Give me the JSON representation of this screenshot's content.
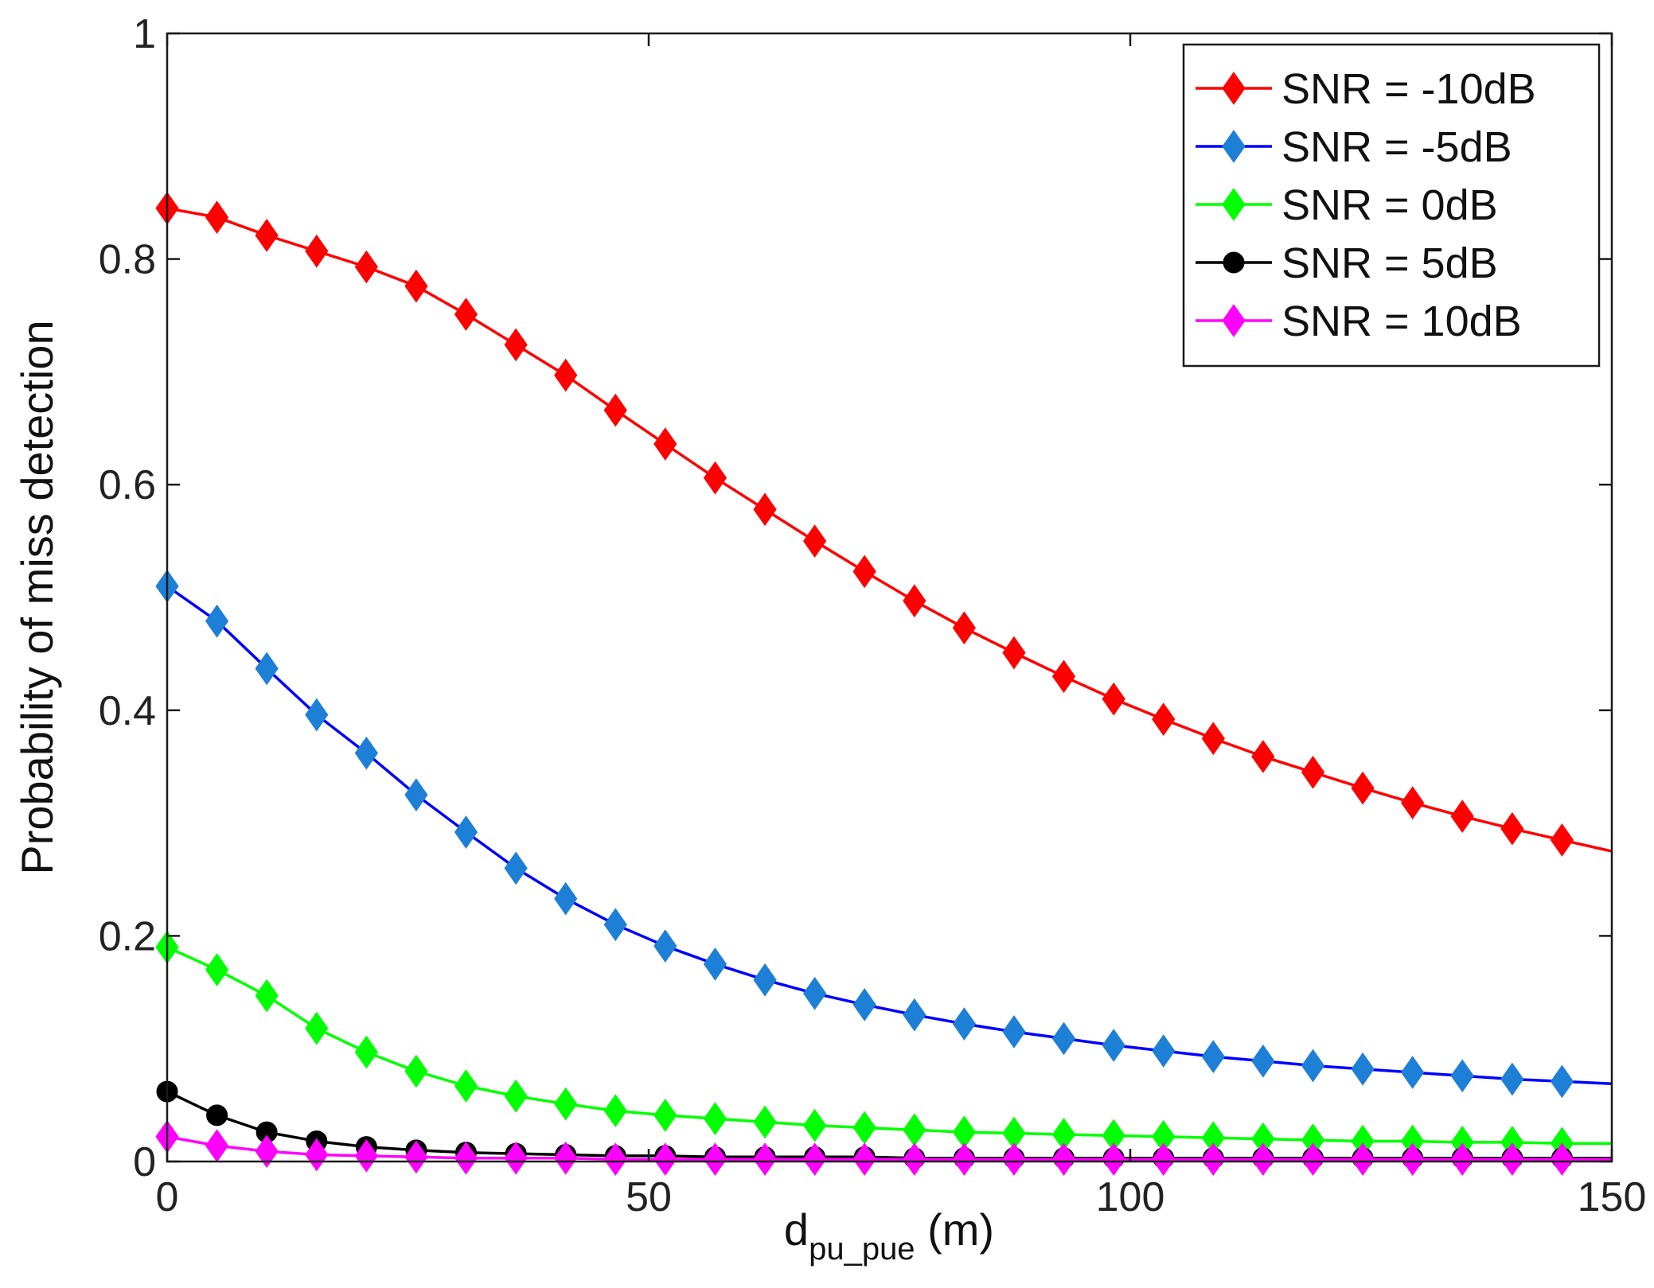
{
  "chart_data": {
    "type": "line",
    "title": "",
    "xlabel": {
      "main": "d",
      "sub": "pu_pue",
      "suffix": " (m)"
    },
    "ylabel": "Probability of miss detection",
    "xlim": [
      0,
      150
    ],
    "ylim": [
      0,
      1
    ],
    "xticks": [
      0,
      50,
      100,
      150
    ],
    "xtick_labels": [
      "0",
      "50",
      "100",
      "150"
    ],
    "yticks": [
      0,
      0.2,
      0.4,
      0.6,
      0.8,
      1
    ],
    "ytick_labels": [
      "0",
      "0.2",
      "0.4",
      "0.6",
      "0.8",
      "1"
    ],
    "grid": false,
    "legend_position": "top-right",
    "x": [
      0,
      5.17,
      10.34,
      15.52,
      20.69,
      25.86,
      31.03,
      36.21,
      41.38,
      46.55,
      51.72,
      56.9,
      62.07,
      67.24,
      72.41,
      77.59,
      82.76,
      87.93,
      93.1,
      98.28,
      103.45,
      108.62,
      113.79,
      118.97,
      124.14,
      129.31,
      134.48,
      139.66,
      144.83,
      150
    ],
    "series": [
      {
        "name": "SNR = -10dB",
        "color": "#ff0000",
        "line_color": "#ff0000",
        "marker": "diamond",
        "values": [
          0.845,
          0.837,
          0.821,
          0.807,
          0.793,
          0.776,
          0.751,
          0.724,
          0.697,
          0.666,
          0.636,
          0.606,
          0.578,
          0.55,
          0.523,
          0.497,
          0.473,
          0.451,
          0.43,
          0.41,
          0.392,
          0.375,
          0.359,
          0.345,
          0.331,
          0.318,
          0.306,
          0.295,
          0.285,
          0.275
        ]
      },
      {
        "name": "SNR = -5dB",
        "color": "#1e7fd6",
        "line_color": "#0000ff",
        "marker": "diamond",
        "values": [
          0.51,
          0.479,
          0.437,
          0.396,
          0.362,
          0.325,
          0.292,
          0.26,
          0.233,
          0.21,
          0.191,
          0.175,
          0.161,
          0.149,
          0.139,
          0.13,
          0.122,
          0.115,
          0.109,
          0.103,
          0.098,
          0.093,
          0.089,
          0.085,
          0.082,
          0.079,
          0.076,
          0.073,
          0.071,
          0.069
        ]
      },
      {
        "name": "SNR = 0dB",
        "color": "#00ff00",
        "line_color": "#00ff00",
        "marker": "diamond",
        "values": [
          0.19,
          0.17,
          0.147,
          0.118,
          0.097,
          0.08,
          0.067,
          0.058,
          0.051,
          0.045,
          0.041,
          0.038,
          0.035,
          0.032,
          0.03,
          0.028,
          0.026,
          0.025,
          0.024,
          0.023,
          0.022,
          0.021,
          0.02,
          0.019,
          0.018,
          0.018,
          0.017,
          0.017,
          0.016,
          0.016
        ]
      },
      {
        "name": "SNR = 5dB",
        "color": "#000000",
        "line_color": "#000000",
        "marker": "circle",
        "values": [
          0.062,
          0.041,
          0.026,
          0.018,
          0.013,
          0.01,
          0.008,
          0.007,
          0.006,
          0.005,
          0.005,
          0.004,
          0.004,
          0.004,
          0.004,
          0.003,
          0.003,
          0.003,
          0.003,
          0.003,
          0.003,
          0.003,
          0.003,
          0.003,
          0.003,
          0.003,
          0.003,
          0.003,
          0.003,
          0.003
        ]
      },
      {
        "name": "SNR = 10dB",
        "color": "#ff00ff",
        "line_color": "#ff00ff",
        "marker": "diamond",
        "values": [
          0.022,
          0.014,
          0.009,
          0.006,
          0.005,
          0.004,
          0.003,
          0.003,
          0.003,
          0.002,
          0.002,
          0.002,
          0.002,
          0.002,
          0.002,
          0.002,
          0.002,
          0.002,
          0.002,
          0.002,
          0.002,
          0.002,
          0.002,
          0.002,
          0.002,
          0.002,
          0.002,
          0.002,
          0.002,
          0.002
        ]
      }
    ]
  }
}
